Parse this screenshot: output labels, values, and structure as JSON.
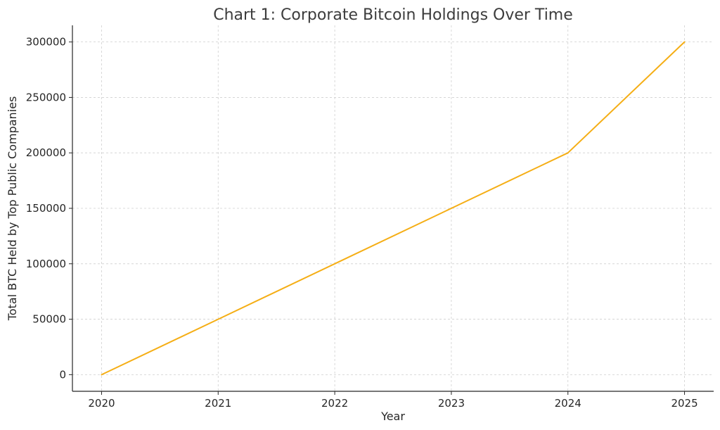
{
  "chart_data": {
    "type": "line",
    "title": "Chart 1: Corporate Bitcoin Holdings Over Time",
    "xlabel": "Year",
    "ylabel": "Total BTC Held by Top Public Companies",
    "x": [
      2020,
      2021,
      2022,
      2023,
      2024,
      2025
    ],
    "x_tick_labels": [
      "2020",
      "2021",
      "2022",
      "2023",
      "2024",
      "2025"
    ],
    "y_ticks": [
      0,
      50000,
      100000,
      150000,
      200000,
      250000,
      300000
    ],
    "y_tick_labels": [
      "0",
      "50000",
      "100000",
      "150000",
      "200000",
      "250000",
      "300000"
    ],
    "xlim": [
      2019.75,
      2025.25
    ],
    "ylim": [
      -15000,
      315000
    ],
    "grid": true,
    "series": [
      {
        "values": [
          0,
          50000,
          100000,
          150000,
          200000,
          300000
        ],
        "color": "#f5ae15"
      }
    ]
  }
}
